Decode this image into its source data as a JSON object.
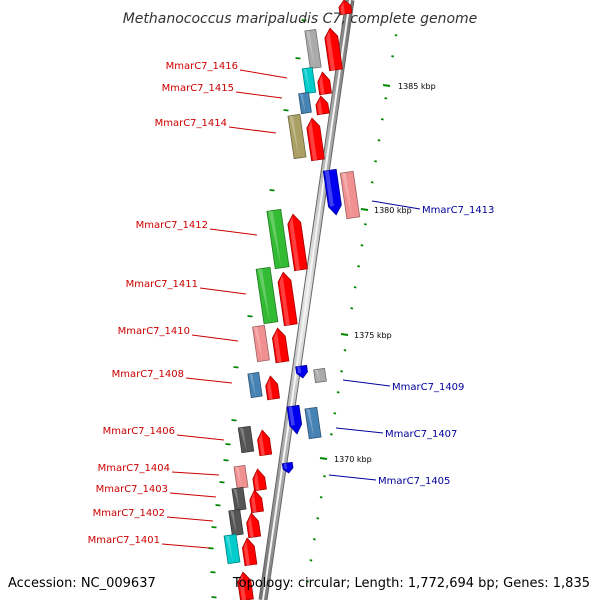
{
  "title": "Methanococcus maripaludis C7, complete genome",
  "accession": "Accession: NC_009637",
  "topology": "Topology: circular; Length: 1,772,694 bp; Genes: 1,835",
  "colors": {
    "forward_label": "#cc0000",
    "reverse_label": "#000099",
    "gene_red": "#ff0000",
    "gene_gray": "#aaaaaa",
    "gene_dark_gray": "#555555",
    "gene_cyan": "#00cccc",
    "gene_steel_blue": "#4682b4",
    "gene_khaki": "#aaa066",
    "gene_green": "#33bb33",
    "gene_pink": "#f09090",
    "gene_blue": "#0000ee",
    "tick_green": "#008800"
  },
  "scale_ticks": [
    {
      "label": "1385 kbp"
    },
    {
      "label": "1380 kbp"
    },
    {
      "label": "1375 kbp"
    },
    {
      "label": "1370 kbp"
    }
  ],
  "forward_genes": [
    {
      "label": "MmarC7_1416"
    },
    {
      "label": "MmarC7_1415"
    },
    {
      "label": "MmarC7_1414"
    },
    {
      "label": "MmarC7_1412"
    },
    {
      "label": "MmarC7_1411"
    },
    {
      "label": "MmarC7_1410"
    },
    {
      "label": "MmarC7_1408"
    },
    {
      "label": "MmarC7_1406"
    },
    {
      "label": "MmarC7_1404"
    },
    {
      "label": "MmarC7_1403"
    },
    {
      "label": "MmarC7_1402"
    },
    {
      "label": "MmarC7_1401"
    }
  ],
  "reverse_genes": [
    {
      "label": "MmarC7_1413"
    },
    {
      "label": "MmarC7_1409"
    },
    {
      "label": "MmarC7_1407"
    },
    {
      "label": "MmarC7_1405"
    }
  ]
}
